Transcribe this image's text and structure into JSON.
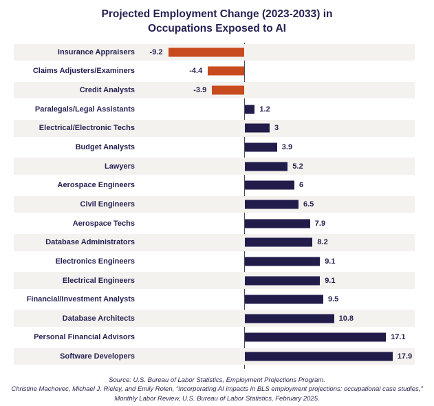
{
  "title": {
    "line1": "Projected Employment Change (2023-2033) in",
    "line2": "Occupations Exposed to AI"
  },
  "chart_data": {
    "type": "bar",
    "orientation": "horizontal",
    "title": "Projected Employment Change (2023-2033) in Occupations Exposed to AI",
    "xlabel": "",
    "ylabel": "",
    "xlim": [
      -12,
      22
    ],
    "zero_axis_line": true,
    "alternating_row_stripes": true,
    "categories": [
      "Insurance Appraisers",
      "Claims Adjusters/Examiners",
      "Credit Analysts",
      "Paralegals/Legal Assistants",
      "Electrical/Electronic Techs",
      "Budget Analysts",
      "Lawyers",
      "Aerospace Engineers",
      "Civil Engineers",
      "Aerospace Techs",
      "Database Administrators",
      "Electronics Engineers",
      "Electrical Engineers",
      "Financial/Investment Analysts",
      "Database Architects",
      "Personal Financial Advisors",
      "Software Developers"
    ],
    "values": [
      -9.2,
      -4.4,
      -3.9,
      1.2,
      3,
      3.9,
      5.2,
      6,
      6.5,
      7.9,
      8.2,
      9.1,
      9.1,
      9.5,
      10.8,
      17.1,
      17.9
    ],
    "value_labels": [
      "-9.2",
      "-4.4",
      "-3.9",
      "1.2",
      "3",
      "3.9",
      "5.2",
      "6",
      "6.5",
      "7.9",
      "8.2",
      "9.1",
      "9.1",
      "9.5",
      "10.8",
      "17.1",
      "17.9"
    ]
  },
  "colors": {
    "positive_bar": "#221c4b",
    "negative_bar": "#c74b1e",
    "text": "#262152",
    "row_stripe": "#f4f2ef",
    "axis_line": "#4b4a5c",
    "background": "#ffffff"
  },
  "footer": {
    "line1": "Source: U.S. Bureau of Labor Statistics, Employment Projections Program.",
    "line2": "Christine Machovec, Michael J. Rieley, and Emily Rolen, “Incorporating AI impacts in BLS employment projections: occupational case studies,”",
    "line3": "Monthly Labor Review, U.S. Bureau of Labor Statistics, February 2025."
  }
}
